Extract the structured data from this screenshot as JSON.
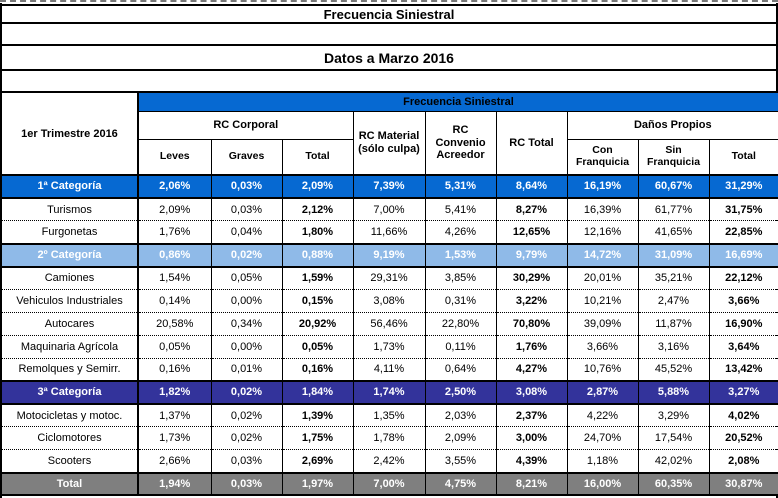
{
  "titles": {
    "main": "Frecuencia Siniestral",
    "sub": "Datos a Marzo 2016"
  },
  "table": {
    "corner_label": "1er Trimestre 2016",
    "band_label": "Frecuencia Siniestral",
    "groups": {
      "rc_corporal": "RC Corporal",
      "rc_material": "RC Material\n(sólo culpa)",
      "rc_convenio": "RC\nConvenio\nAcreedor",
      "rc_total": "RC Total",
      "danos_propios": "Daños Propios"
    },
    "subheaders": {
      "leves": "Leves",
      "graves": "Graves",
      "total_rc": "Total",
      "con_franquicia": "Con\nFranquicia",
      "sin_franquicia": "Sin\nFranquicia",
      "total_dp": "Total"
    },
    "colors": {
      "band_blue": "#0669D2",
      "category1_blue": "#0669D2",
      "category2_light_blue": "#8FBAE8",
      "category3_navy": "#33339B",
      "total_gray": "#7F7F7F"
    },
    "rows": [
      {
        "type": "cat1",
        "label": "1ª Categoría",
        "values": [
          "2,06%",
          "0,03%",
          "2,09%",
          "7,39%",
          "5,31%",
          "8,64%",
          "16,19%",
          "60,67%",
          "31,29%"
        ]
      },
      {
        "type": "normal",
        "label": "Turismos",
        "values": [
          "2,09%",
          "0,03%",
          "2,12%",
          "7,00%",
          "5,41%",
          "8,27%",
          "16,39%",
          "61,77%",
          "31,75%"
        ]
      },
      {
        "type": "normal",
        "label": "Furgonetas",
        "values": [
          "1,76%",
          "0,04%",
          "1,80%",
          "11,66%",
          "4,26%",
          "12,65%",
          "12,16%",
          "41,65%",
          "22,85%"
        ]
      },
      {
        "type": "cat2",
        "label": "2º Categoría",
        "values": [
          "0,86%",
          "0,02%",
          "0,88%",
          "9,19%",
          "1,53%",
          "9,79%",
          "14,72%",
          "31,09%",
          "16,69%"
        ]
      },
      {
        "type": "normal",
        "label": "Camiones",
        "values": [
          "1,54%",
          "0,05%",
          "1,59%",
          "29,31%",
          "3,85%",
          "30,29%",
          "20,01%",
          "35,21%",
          "22,12%"
        ]
      },
      {
        "type": "normal",
        "label": "Vehiculos Industriales",
        "values": [
          "0,14%",
          "0,00%",
          "0,15%",
          "3,08%",
          "0,31%",
          "3,22%",
          "10,21%",
          "2,47%",
          "3,66%"
        ]
      },
      {
        "type": "normal",
        "label": "Autocares",
        "values": [
          "20,58%",
          "0,34%",
          "20,92%",
          "56,46%",
          "22,80%",
          "70,80%",
          "39,09%",
          "11,87%",
          "16,90%"
        ]
      },
      {
        "type": "normal",
        "label": "Maquinaria Agrícola",
        "values": [
          "0,05%",
          "0,00%",
          "0,05%",
          "1,73%",
          "0,11%",
          "1,76%",
          "3,66%",
          "3,16%",
          "3,64%"
        ]
      },
      {
        "type": "normal",
        "label": "Remolques y Semirr.",
        "values": [
          "0,16%",
          "0,01%",
          "0,16%",
          "4,11%",
          "0,64%",
          "4,27%",
          "10,76%",
          "45,52%",
          "13,42%"
        ]
      },
      {
        "type": "cat3",
        "label": "3ª Categoría",
        "values": [
          "1,82%",
          "0,02%",
          "1,84%",
          "1,74%",
          "2,50%",
          "3,08%",
          "2,87%",
          "5,88%",
          "3,27%"
        ]
      },
      {
        "type": "normal",
        "label": "Motocicletas y motoc.",
        "values": [
          "1,37%",
          "0,02%",
          "1,39%",
          "1,35%",
          "2,03%",
          "2,37%",
          "4,22%",
          "3,29%",
          "4,02%"
        ]
      },
      {
        "type": "normal",
        "label": "Ciclomotores",
        "values": [
          "1,73%",
          "0,02%",
          "1,75%",
          "1,78%",
          "2,09%",
          "3,00%",
          "24,70%",
          "17,54%",
          "20,52%"
        ]
      },
      {
        "type": "normal",
        "label": "Scooters",
        "values": [
          "2,66%",
          "0,03%",
          "2,69%",
          "2,42%",
          "3,55%",
          "4,39%",
          "1,18%",
          "42,02%",
          "2,08%"
        ]
      },
      {
        "type": "total",
        "label": "Total",
        "values": [
          "1,94%",
          "0,03%",
          "1,97%",
          "7,00%",
          "4,75%",
          "8,21%",
          "16,00%",
          "60,35%",
          "30,87%"
        ]
      }
    ]
  }
}
